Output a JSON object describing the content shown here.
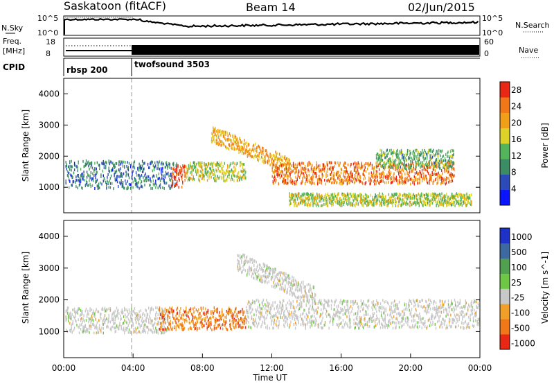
{
  "header": {
    "title": "Saskatoon (fitACF)",
    "beam": "Beam 14",
    "date": "02/Jun/2015"
  },
  "top_panels": {
    "nsky_label": "N.Sky",
    "nsky_ticks": [
      "10^5",
      "10^0"
    ],
    "nsearch_label": "N.Search",
    "nsearch_ticks": [
      "10^5",
      "10^0"
    ],
    "freq_label": "Freq.",
    "freq_unit": "[MHz]",
    "freq_ticks": [
      "18",
      "8"
    ],
    "nave_label": "Nave",
    "nave_ticks": [
      "60",
      "0"
    ],
    "cpid_label": "CPID",
    "cpid_segments": [
      {
        "label": "rbsp 200",
        "start_hour": 0
      },
      {
        "label": "twofsound 3503",
        "start_hour": 4
      }
    ]
  },
  "chart_data": [
    {
      "type": "heatmap",
      "panel": "power",
      "x_time_range": [
        "00:00",
        "24:00"
      ],
      "xlim_hours": [
        0,
        24
      ],
      "ylabel": "Slant Range [km]",
      "ylim": [
        180,
        4500
      ],
      "y_ticks": [
        1000,
        2000,
        3000,
        4000
      ],
      "colorbar_label": "Power [dB]",
      "colorbar_ticks": [
        4,
        8,
        12,
        16,
        20,
        24,
        28
      ],
      "colorbar_range": [
        0,
        30
      ],
      "colorbar_colors": [
        "#0a14ff",
        "#2c4ab8",
        "#3c8c64",
        "#54b45c",
        "#dcd228",
        "#f0a018",
        "#f07818",
        "#e82814"
      ],
      "echo_regions": [
        {
          "t_start": 0.1,
          "t_end": 6.5,
          "r_center": 1400,
          "r_width": 450,
          "power": 8
        },
        {
          "t_start": 6.2,
          "t_end": 7.0,
          "r_center": 1350,
          "r_width": 350,
          "power": 28
        },
        {
          "t_start": 7.0,
          "t_end": 10.5,
          "r_center": 1500,
          "r_width": 300,
          "power": 16
        },
        {
          "t_start": 8.5,
          "t_end": 13.0,
          "r_center": "2700 to 1700",
          "r_width": 250,
          "power": 20
        },
        {
          "t_start": 12.0,
          "t_end": 22.5,
          "r_center": 1450,
          "r_width": 350,
          "power": 24
        },
        {
          "t_start": 18.0,
          "t_end": 22.5,
          "r_center": 1900,
          "r_width": 300,
          "power": 12
        },
        {
          "t_start": 13.0,
          "t_end": 23.5,
          "r_center": 600,
          "r_width": 200,
          "power": 16
        }
      ]
    },
    {
      "type": "heatmap",
      "panel": "velocity",
      "x_time_range": [
        "00:00",
        "24:00"
      ],
      "xlim_hours": [
        0,
        24
      ],
      "xlabel": "Time UT",
      "x_ticks": [
        "00:00",
        "04:00",
        "08:00",
        "12:00",
        "16:00",
        "20:00",
        "00:00"
      ],
      "ylabel": "Slant Range [km]",
      "ylim": [
        180,
        4500
      ],
      "y_ticks": [
        1000,
        2000,
        3000,
        4000
      ],
      "colorbar_label": "Velocity [m s^-1]",
      "colorbar_ticks": [
        "1000",
        "500",
        "100",
        "25",
        "-25",
        "-100",
        "-500",
        "-1000"
      ],
      "colorbar_colors": [
        "#1e32c8",
        "#3c6aa0",
        "#50a050",
        "#6ec846",
        "#c8c8c8",
        "#f0a028",
        "#f07818",
        "#e82814"
      ],
      "echo_regions": [
        {
          "t_start": 0.1,
          "t_end": 6.0,
          "r_center": 1350,
          "r_width": 400,
          "velocity": 0
        },
        {
          "t_start": 5.5,
          "t_end": 10.5,
          "r_center": 1400,
          "r_width": 350,
          "velocity": -500
        },
        {
          "t_start": 10.5,
          "t_end": 24.0,
          "r_center": 1550,
          "r_width": 450,
          "velocity": 0
        },
        {
          "t_start": 10.0,
          "t_end": 14.5,
          "r_center": "3200 to 2100",
          "r_width": 300,
          "velocity": 0
        }
      ]
    }
  ]
}
